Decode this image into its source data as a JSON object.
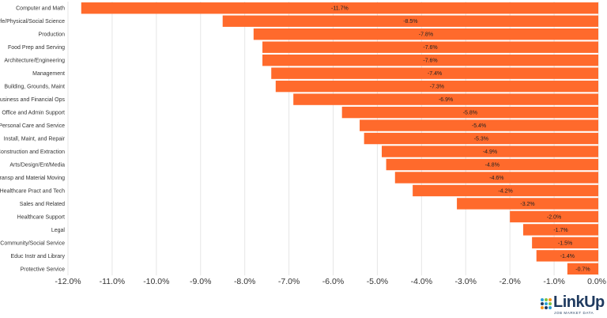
{
  "chart_data": {
    "type": "bar",
    "orientation": "horizontal",
    "categories": [
      "Computer and Math",
      "Life/Physical/Social Science",
      "Production",
      "Food Prep and Serving",
      "Architecture/Engineering",
      "Management",
      "Building, Grounds, Maint",
      "Business and Financial Ops",
      "Office and Admin Support",
      "Personal Care and Service",
      "Install, Maint, and Repair",
      "Construction and Extraction",
      "Arts/Design/Ent/Media",
      "Transp and Material Moving",
      "Healthcare Pract and Tech",
      "Sales and Related",
      "Healthcare Support",
      "Legal",
      "Community/Social Service",
      "Educ Instr and Library",
      "Protective Service"
    ],
    "values": [
      -11.7,
      -8.5,
      -7.8,
      -7.6,
      -7.6,
      -7.4,
      -7.3,
      -6.9,
      -5.8,
      -5.4,
      -5.3,
      -4.9,
      -4.8,
      -4.6,
      -4.2,
      -3.2,
      -2.0,
      -1.7,
      -1.5,
      -1.4,
      -0.7
    ],
    "value_labels": [
      "-11.7%",
      "-8.5%",
      "-7.8%",
      "-7.6%",
      "-7.6%",
      "-7.4%",
      "-7.3%",
      "-6.9%",
      "-5.8%",
      "-5.4%",
      "-5.3%",
      "-4.9%",
      "-4.8%",
      "-4.6%",
      "-4.2%",
      "-3.2%",
      "-2.0%",
      "-1.7%",
      "-1.5%",
      "-1.4%",
      "-0.7%"
    ],
    "xlim": [
      -12.0,
      0.0
    ],
    "xticks": [
      -12,
      -11,
      -10,
      -9,
      -8,
      -7,
      -6,
      -5,
      -4,
      -3,
      -2,
      -1,
      0
    ],
    "xtick_labels": [
      "-12.0%",
      "-11.0%",
      "-10.0%",
      "-9.0%",
      "-8.0%",
      "-7.0%",
      "-6.0%",
      "-5.0%",
      "-4.0%",
      "-3.0%",
      "-2.0%",
      "-1.0%",
      "0.0%"
    ],
    "grid": "vertical",
    "title": "",
    "xlabel": "",
    "ylabel": "",
    "colors": {
      "bar": "#ff6a2c",
      "grid": "#e6e6e6",
      "text": "#333333"
    }
  },
  "logo": {
    "name": "LinkUp",
    "tagline": "JOB MARKET DATA",
    "colors": {
      "text": "#1f3a5f",
      "dot_blue": "#2a9fd6",
      "dot_green": "#7cc242",
      "dot_orange": "#f7941d",
      "dot_navy": "#1f3a5f"
    }
  }
}
